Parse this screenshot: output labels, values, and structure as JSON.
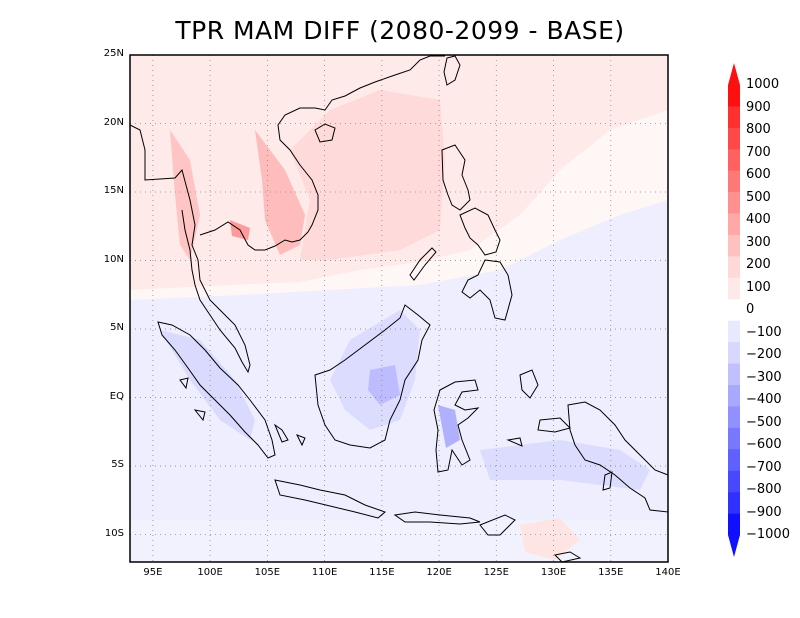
{
  "title": "TPR MAM DIFF (2080-2099 - BASE)",
  "map": {
    "lon_range": [
      93,
      140
    ],
    "lat_range": [
      -12,
      25
    ],
    "lat_ticks": [
      {
        "value": 25,
        "label": "25N"
      },
      {
        "value": 20,
        "label": "20N"
      },
      {
        "value": 15,
        "label": "15N"
      },
      {
        "value": 10,
        "label": "10N"
      },
      {
        "value": 5,
        "label": "5N"
      },
      {
        "value": 0,
        "label": "EQ"
      },
      {
        "value": -5,
        "label": "5S"
      },
      {
        "value": -10,
        "label": "10S"
      }
    ],
    "lon_ticks": [
      {
        "value": 95,
        "label": "95E"
      },
      {
        "value": 100,
        "label": "100E"
      },
      {
        "value": 105,
        "label": "105E"
      },
      {
        "value": 110,
        "label": "110E"
      },
      {
        "value": 115,
        "label": "115E"
      },
      {
        "value": 120,
        "label": "120E"
      },
      {
        "value": 125,
        "label": "125E"
      },
      {
        "value": 130,
        "label": "130E"
      },
      {
        "value": 135,
        "label": "135E"
      },
      {
        "value": 140,
        "label": "140E"
      }
    ],
    "grid": true
  },
  "colorbar": {
    "labels": [
      "1000",
      "900",
      "800",
      "700",
      "600",
      "500",
      "400",
      "300",
      "200",
      "100",
      "0",
      "−100",
      "−200",
      "−300",
      "−400",
      "−500",
      "−600",
      "−700",
      "−800",
      "−900",
      "−1000"
    ],
    "colors": [
      "#ff1010",
      "#ff3030",
      "#ff4848",
      "#ff6060",
      "#ff7878",
      "#ff9090",
      "#ffa8a8",
      "#ffc0c0",
      "#ffd8d8",
      "#ffe8e8",
      "#ffffff",
      "#e8e8ff",
      "#d8d8ff",
      "#c0c0ff",
      "#a8a8ff",
      "#9090ff",
      "#7878ff",
      "#6060ff",
      "#4848ff",
      "#3030ff",
      "#1010ff"
    ]
  }
}
